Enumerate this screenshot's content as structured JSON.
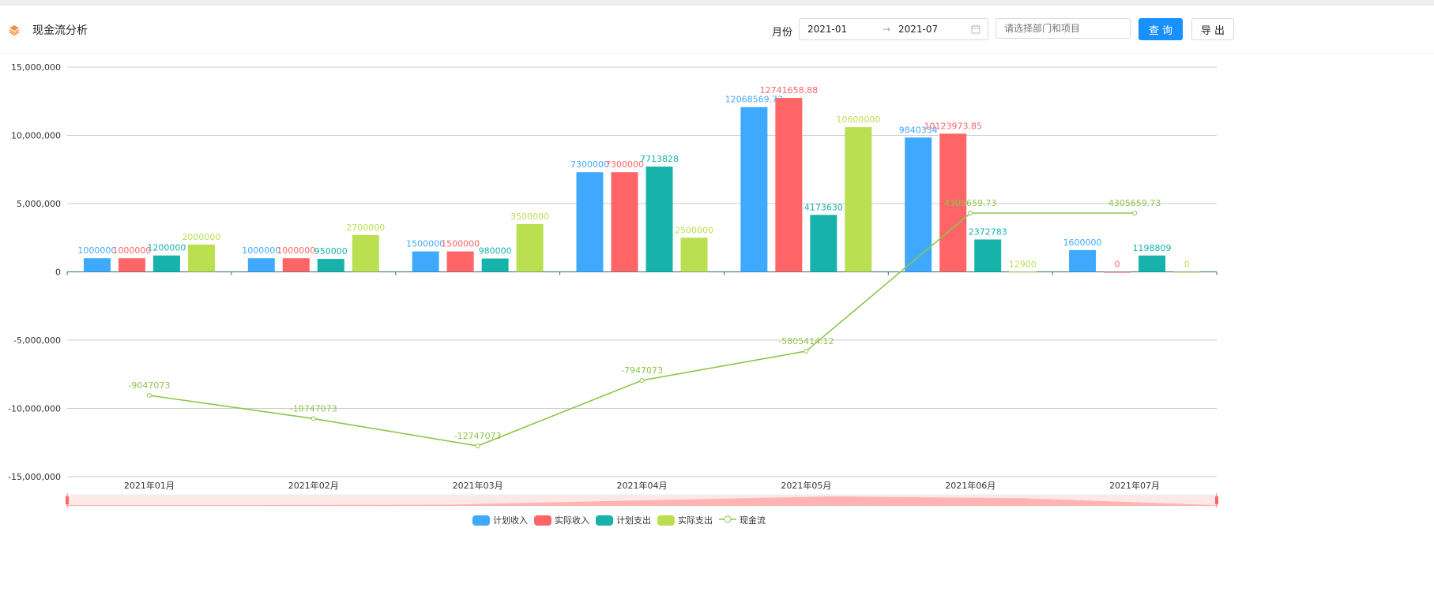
{
  "header": {
    "title": "现金流分析",
    "icon": "layers-icon",
    "month_label": "月份",
    "start": "2021-01",
    "end": "2021-07",
    "range_sep": "→",
    "calendar_icon": "calendar-icon",
    "dept_placeholder": "请选择部门和项目",
    "query_label": "查 询",
    "export_label": "导 出"
  },
  "colors": {
    "accent": "#1890ff",
    "plan_income": "#3fa9ff",
    "actual_income": "#ff6566",
    "plan_expense": "#17b3aa",
    "actual_expense": "#badf51",
    "cashflow": "#8cc64a"
  },
  "chart_data": {
    "type": "bar",
    "categories": [
      "2021年01月",
      "2021年02月",
      "2021年03月",
      "2021年04月",
      "2021年05月",
      "2021年06月",
      "2021年07月"
    ],
    "ylim": [
      -15000000,
      15000000
    ],
    "yticks": [
      "15,000,000",
      "10,000,000",
      "5,000,000",
      "0",
      "-5,000,000",
      "-10,000,000",
      "-15,000,000"
    ],
    "grid": true,
    "legend_placement": "bottom",
    "datazoom": true,
    "series": [
      {
        "name": "计划收入",
        "type": "bar",
        "values": [
          1000000,
          1000000,
          1500000,
          7300000,
          12068569.73,
          9840334,
          1600000
        ],
        "labels": [
          "1000000",
          "1000000",
          "1500000",
          "7300000",
          "12068569.73",
          "9840334",
          "1600000"
        ]
      },
      {
        "name": "实际收入",
        "type": "bar",
        "values": [
          1000000,
          1000000,
          1500000,
          7300000,
          12741658.88,
          10123973.85,
          0
        ],
        "labels": [
          "1000000",
          "1000000",
          "1500000",
          "7300000",
          "12741658.88",
          "10123973.85",
          "0"
        ]
      },
      {
        "name": "计划支出",
        "type": "bar",
        "values": [
          1200000,
          950000,
          980000,
          7713828,
          4173630,
          2372783,
          1198809
        ],
        "labels": [
          "1200000",
          "950000",
          "980000",
          "7713828",
          "4173630",
          "2372783",
          "1198809"
        ]
      },
      {
        "name": "实际支出",
        "type": "bar",
        "values": [
          2000000,
          2700000,
          3500000,
          2500000,
          10600000,
          12900,
          0
        ],
        "labels": [
          "2000000",
          "2700000",
          "3500000",
          "2500000",
          "10600000",
          "12900",
          "0"
        ]
      },
      {
        "name": "现金流",
        "type": "line",
        "values": [
          -9047073,
          -10747073,
          -12747073,
          -7947073,
          -5805414.12,
          4305659.73,
          4305659.73
        ],
        "labels": [
          "-9047073",
          "-10747073",
          "-12747073",
          "-7947073",
          "-5805414.12",
          "4305659.73",
          "4305659.73"
        ]
      }
    ]
  }
}
